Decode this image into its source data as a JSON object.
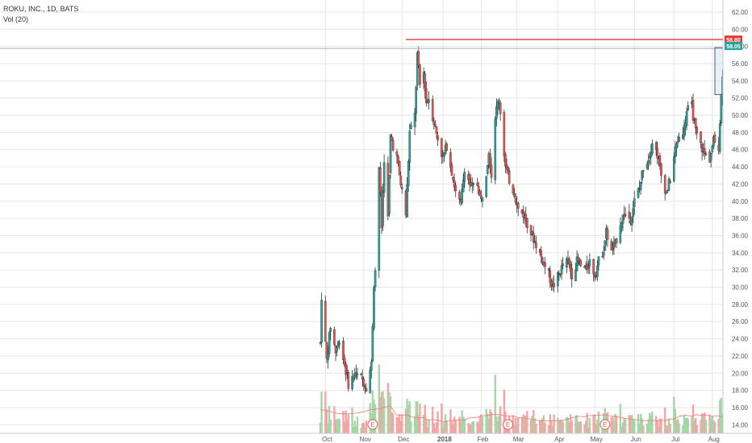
{
  "legend": {
    "symbol": "ROKU, INC., 1D, BATS",
    "volume": "Vol (20)"
  },
  "colors": {
    "up": "#26a69a",
    "down": "#ef5350",
    "up_vol": "#a5d6a7",
    "down_vol": "#f4a6a6",
    "grid": "#e6e6e6",
    "resistance": "#e53935",
    "price_badge": "#26a69a",
    "ma": "#ef7b6f",
    "cursor": "#9fb0c8"
  },
  "chart_data": {
    "type": "candlestick",
    "title": "ROKU, INC., 1D, BATS",
    "y_axis": {
      "ticks": [
        "14.00",
        "16.00",
        "18.00",
        "20.00",
        "22.00",
        "24.00",
        "26.00",
        "28.00",
        "30.00",
        "32.00",
        "34.00",
        "36.00",
        "38.00",
        "40.00",
        "42.00",
        "44.00",
        "46.00",
        "48.00",
        "50.00",
        "52.00",
        "54.00",
        "56.00",
        "58.00",
        "60.00",
        "62.00"
      ],
      "range": [
        13,
        63.4
      ]
    },
    "x_axis": {
      "ticks": [
        "Oct",
        "Nov",
        "Dec",
        "2018",
        "Feb",
        "Mar",
        "Apr",
        "May",
        "Jun",
        "Jul",
        "Aug"
      ]
    },
    "price_path": [
      [
        "2017-09-28",
        23.5
      ],
      [
        "2017-09-29",
        29.0
      ],
      [
        "2017-10-03",
        21.5
      ],
      [
        "2017-10-06",
        25.5
      ],
      [
        "2017-10-10",
        22.5
      ],
      [
        "2017-10-13",
        24.0
      ],
      [
        "2017-10-17",
        21.0
      ],
      [
        "2017-10-20",
        18.8
      ],
      [
        "2017-10-25",
        19.8
      ],
      [
        "2017-10-30",
        19.5
      ],
      [
        "2017-11-03",
        18.5
      ],
      [
        "2017-11-07",
        21.0
      ],
      [
        "2017-11-09",
        30.5
      ],
      [
        "2017-11-10",
        32.0
      ],
      [
        "2017-11-13",
        44.0
      ],
      [
        "2017-11-15",
        37.0
      ],
      [
        "2017-11-17",
        45.0
      ],
      [
        "2017-11-20",
        38.0
      ],
      [
        "2017-11-22",
        47.5
      ],
      [
        "2017-11-27",
        45.0
      ],
      [
        "2017-11-30",
        42.0
      ],
      [
        "2017-12-04",
        38.5
      ],
      [
        "2017-12-07",
        48.0
      ],
      [
        "2017-12-11",
        50.0
      ],
      [
        "2017-12-13",
        57.0
      ],
      [
        "2017-12-15",
        53.5
      ],
      [
        "2017-12-18",
        55.0
      ],
      [
        "2017-12-20",
        51.5
      ],
      [
        "2017-12-22",
        52.0
      ],
      [
        "2017-12-27",
        48.5
      ],
      [
        "2018-01-02",
        45.0
      ],
      [
        "2018-01-05",
        46.5
      ],
      [
        "2018-01-09",
        43.5
      ],
      [
        "2018-01-12",
        41.0
      ],
      [
        "2018-01-16",
        39.5
      ],
      [
        "2018-01-19",
        44.0
      ],
      [
        "2018-01-24",
        41.5
      ],
      [
        "2018-01-29",
        42.0
      ],
      [
        "2018-02-01",
        40.0
      ],
      [
        "2018-02-05",
        43.5
      ],
      [
        "2018-02-07",
        46.0
      ],
      [
        "2018-02-09",
        43.0
      ],
      [
        "2018-02-12",
        50.0
      ],
      [
        "2018-02-15",
        52.0
      ],
      [
        "2018-02-20",
        44.0
      ],
      [
        "2018-02-23",
        42.5
      ],
      [
        "2018-02-27",
        41.0
      ],
      [
        "2018-03-02",
        39.0
      ],
      [
        "2018-03-06",
        38.5
      ],
      [
        "2018-03-09",
        37.5
      ],
      [
        "2018-03-13",
        36.0
      ],
      [
        "2018-03-16",
        35.0
      ],
      [
        "2018-03-20",
        33.5
      ],
      [
        "2018-03-23",
        32.5
      ],
      [
        "2018-03-27",
        31.0
      ],
      [
        "2018-03-29",
        30.0
      ],
      [
        "2018-04-03",
        31.5
      ],
      [
        "2018-04-06",
        32.5
      ],
      [
        "2018-04-10",
        33.0
      ],
      [
        "2018-04-13",
        31.5
      ],
      [
        "2018-04-17",
        33.0
      ],
      [
        "2018-04-20",
        32.5
      ],
      [
        "2018-04-24",
        32.0
      ],
      [
        "2018-04-27",
        33.0
      ],
      [
        "2018-05-01",
        31.5
      ],
      [
        "2018-05-04",
        33.0
      ],
      [
        "2018-05-08",
        34.5
      ],
      [
        "2018-05-10",
        36.5
      ],
      [
        "2018-05-14",
        34.0
      ],
      [
        "2018-05-17",
        35.0
      ],
      [
        "2018-05-21",
        37.5
      ],
      [
        "2018-05-24",
        38.5
      ],
      [
        "2018-05-29",
        38.0
      ],
      [
        "2018-06-01",
        40.0
      ],
      [
        "2018-06-05",
        41.5
      ],
      [
        "2018-06-08",
        44.0
      ],
      [
        "2018-06-12",
        45.0
      ],
      [
        "2018-06-15",
        47.0
      ],
      [
        "2018-06-19",
        45.5
      ],
      [
        "2018-06-22",
        43.0
      ],
      [
        "2018-06-26",
        41.0
      ],
      [
        "2018-06-29",
        42.5
      ],
      [
        "2018-07-03",
        46.0
      ],
      [
        "2018-07-06",
        47.5
      ],
      [
        "2018-07-10",
        48.5
      ],
      [
        "2018-07-12",
        50.5
      ],
      [
        "2018-07-16",
        51.0
      ],
      [
        "2018-07-19",
        48.0
      ],
      [
        "2018-07-23",
        46.5
      ],
      [
        "2018-07-26",
        45.5
      ],
      [
        "2018-07-30",
        45.0
      ],
      [
        "2018-08-02",
        47.0
      ],
      [
        "2018-08-06",
        46.5
      ],
      [
        "2018-08-09",
        55.0
      ],
      [
        "2018-08-10",
        58.05
      ]
    ],
    "price_labels": [
      {
        "text": "58.80",
        "value": 58.8,
        "role": "resistance"
      },
      {
        "text": "58.05",
        "value": 58.05,
        "role": "last_price"
      }
    ],
    "earnings_markers": [
      {
        "date": "2017-11-08",
        "label": "E"
      },
      {
        "date": "2018-02-22",
        "label": "E"
      },
      {
        "date": "2018-05-09",
        "label": "E"
      }
    ],
    "volume": {
      "name": "Vol (20)"
    }
  }
}
